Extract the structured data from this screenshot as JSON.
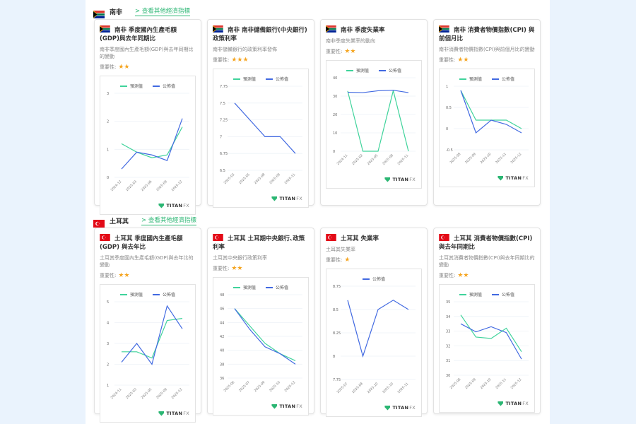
{
  "colors": {
    "forecast": "#3fd39b",
    "actual": "#4169e1",
    "link": "#2bb673",
    "star": "#f5a623",
    "page_bg": "#eaf3fd"
  },
  "legend": {
    "forecast": "預測值",
    "actual": "公佈值"
  },
  "importance_label": "重要性:",
  "logo": {
    "brand": "TITAN",
    "suffix": "FX"
  },
  "sections": [
    {
      "country": "南非",
      "flag": "south-africa",
      "more_link": "> 查看其他經濟指標",
      "cards": [
        {
          "title": "南非 季度國內生產毛額(GDP)與去年同期比",
          "desc": "南非季度國內生產毛額(GDP)與去年同期比的變動",
          "stars": "★★"
        },
        {
          "title": "南非 南非儲備銀行(中央銀行)政策利率",
          "desc": "南非儲備銀行的政策利率發佈",
          "stars": "★★★"
        },
        {
          "title": "南非 季度失業率",
          "desc": "南非季度失業率的動向",
          "stars": "★★"
        },
        {
          "title": "南非 消費者物價指數(CPI) 與前個月比",
          "desc": "南非消費者物價指數(CPI)與前個月比的變動",
          "stars": "★★"
        }
      ]
    },
    {
      "country": "土耳其",
      "flag": "turkey",
      "more_link": "> 查看其他經濟指標",
      "cards": [
        {
          "title": "土耳其 季度國內生產毛額 (GDP) 與去年比",
          "desc": "土耳其季度國內生產毛額(GDP)與去年比的變動",
          "stars": "★★"
        },
        {
          "title": "土耳其 土耳期中央銀行､政策利率",
          "desc": "土耳其中央銀行政策利率",
          "stars": "★★"
        },
        {
          "title": "土耳其 失業率",
          "desc": "土耳其失業率",
          "stars": "★"
        },
        {
          "title": "土耳其 消費者物價指數(CPI) 與去年同期比",
          "desc": "土耳其消費者物價指數(CPI)與去年同期比的變動",
          "stars": "★★"
        }
      ]
    }
  ],
  "chart_data": [
    {
      "id": "za-gdp",
      "type": "line",
      "title": "南非 季度國內生產毛額(GDP)與去年同期比",
      "categories": [
        "2024-12",
        "2025-03",
        "2025-06",
        "2025-09",
        "2025-12"
      ],
      "series": [
        {
          "name": "預測值",
          "values": [
            1.2,
            0.9,
            0.7,
            0.8,
            1.8
          ]
        },
        {
          "name": "公佈值",
          "values": [
            0.3,
            0.9,
            0.8,
            0.6,
            2.1
          ]
        }
      ],
      "yticks": [
        0,
        1,
        2,
        3
      ],
      "ylim": [
        0,
        3
      ],
      "legend": true
    },
    {
      "id": "za-rate",
      "type": "line",
      "title": "南非 南非儲備銀行(中央銀行)政策利率",
      "categories": [
        "2025-03",
        "2025-05",
        "2025-08",
        "2025-09",
        "2025-11"
      ],
      "series": [
        {
          "name": "預測值",
          "values": [
            null,
            null,
            null,
            null,
            null
          ]
        },
        {
          "name": "公佈值",
          "values": [
            7.5,
            7.25,
            7.0,
            7.0,
            6.75
          ]
        }
      ],
      "yticks": [
        6.5,
        6.75,
        7,
        7.25,
        7.5,
        7.75
      ],
      "ylim": [
        6.5,
        7.75
      ],
      "legend": true
    },
    {
      "id": "za-unemp",
      "type": "line",
      "title": "南非 季度失業率",
      "categories": [
        "2024-11",
        "2025-02",
        "2025-05",
        "2025-08",
        "2025-11"
      ],
      "series": [
        {
          "name": "預測值",
          "values": [
            32.8,
            0,
            0,
            33.0,
            0
          ]
        },
        {
          "name": "公佈值",
          "values": [
            32.1,
            31.9,
            32.9,
            33.2,
            31.9
          ]
        }
      ],
      "yticks": [
        0,
        10,
        20,
        30,
        40
      ],
      "ylim": [
        0,
        40
      ],
      "legend": true
    },
    {
      "id": "za-cpi",
      "type": "line",
      "title": "南非 消費者物價指數(CPI) 與前個月比",
      "categories": [
        "2025-08",
        "2025-09",
        "2025-10",
        "2025-11",
        "2025-12"
      ],
      "series": [
        {
          "name": "預測值",
          "values": [
            0.9,
            0.2,
            0.2,
            0.2,
            0.0
          ]
        },
        {
          "name": "公佈值",
          "values": [
            0.9,
            -0.1,
            0.2,
            0.1,
            -0.1
          ]
        }
      ],
      "yticks": [
        -0.5,
        0,
        0.5,
        1
      ],
      "ylim": [
        -0.5,
        1
      ],
      "legend": true
    },
    {
      "id": "tr-gdp",
      "type": "line",
      "title": "土耳其 季度國內生產毛額 (GDP) 與去年比",
      "categories": [
        "2024-11",
        "2025-03",
        "2025-05",
        "2025-09",
        "2025-12"
      ],
      "series": [
        {
          "name": "預測值",
          "values": [
            2.6,
            2.6,
            2.3,
            4.1,
            4.2
          ]
        },
        {
          "name": "公佈值",
          "values": [
            2.1,
            3.0,
            2.0,
            4.8,
            3.7
          ]
        }
      ],
      "yticks": [
        1,
        2,
        3,
        4,
        5
      ],
      "ylim": [
        1,
        5
      ],
      "legend": true
    },
    {
      "id": "tr-rate",
      "type": "line",
      "title": "土耳其 土耳期中央銀行､政策利率",
      "categories": [
        "2025-06",
        "2025-07",
        "2025-09",
        "2025-10",
        "2025-12"
      ],
      "series": [
        {
          "name": "預測值",
          "values": [
            46,
            43.5,
            41,
            39.5,
            38.5
          ]
        },
        {
          "name": "公佈值",
          "values": [
            46,
            43,
            40.5,
            39.5,
            38
          ]
        }
      ],
      "yticks": [
        36,
        38,
        40,
        42,
        44,
        46,
        48
      ],
      "ylim": [
        36,
        48
      ],
      "legend": true
    },
    {
      "id": "tr-unemp",
      "type": "line",
      "title": "土耳其 失業率",
      "categories": [
        "2025-07",
        "2025-08",
        "2025-10",
        "2025-10",
        "2025-11"
      ],
      "series": [
        {
          "name": "公佈值",
          "values": [
            8.6,
            8.0,
            8.5,
            8.6,
            8.5
          ]
        }
      ],
      "yticks": [
        7.75,
        8,
        8.25,
        8.5,
        8.75
      ],
      "ylim": [
        7.75,
        8.75
      ],
      "legend": true
    },
    {
      "id": "tr-cpi",
      "type": "line",
      "title": "土耳其 消費者物價指數(CPI) 與去年同期比",
      "categories": [
        "2025-08",
        "2025-09",
        "2025-10",
        "2025-11",
        "2025-12"
      ],
      "series": [
        {
          "name": "預測值",
          "values": [
            34.1,
            32.6,
            32.5,
            33.2,
            31.6
          ]
        },
        {
          "name": "公佈值",
          "values": [
            33.5,
            32.95,
            33.3,
            32.9,
            31.1
          ]
        }
      ],
      "yticks": [
        30,
        31,
        32,
        33,
        34,
        35
      ],
      "ylim": [
        30,
        35
      ],
      "legend": true
    }
  ]
}
